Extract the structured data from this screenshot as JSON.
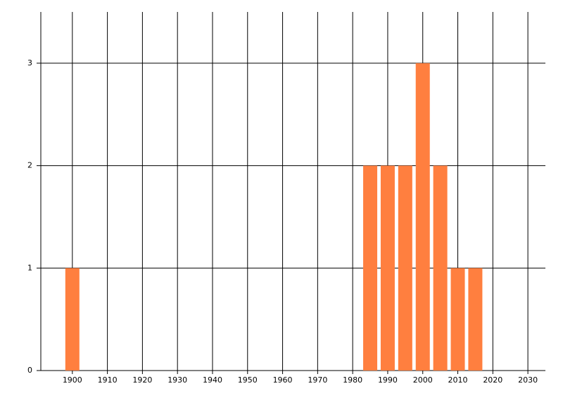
{
  "chart_data": {
    "type": "bar",
    "x": [
      1900,
      1985,
      1990,
      1995,
      2000,
      2005,
      2010,
      2015
    ],
    "values": [
      1,
      2,
      2,
      2,
      3,
      2,
      1,
      1
    ],
    "color": "#ff7f3f",
    "xlim": [
      1891,
      2035
    ],
    "xticks": [
      1900,
      1910,
      1920,
      1930,
      1940,
      1950,
      1960,
      1970,
      1980,
      1990,
      2000,
      2010,
      2020,
      2030
    ],
    "ylim": [
      0,
      3.5
    ],
    "yticks": [
      0,
      1,
      2,
      3
    ],
    "grid": true
  }
}
